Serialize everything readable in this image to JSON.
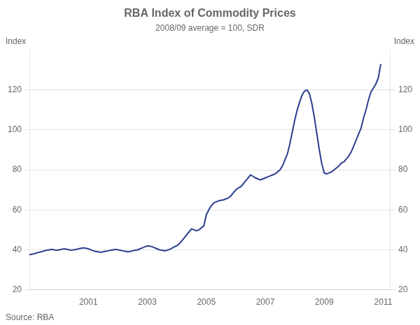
{
  "chart_data": {
    "type": "line",
    "title": "RBA Index of Commodity Prices",
    "subtitle": "2008/09 average = 100, SDR",
    "ylabel": "Index",
    "source": "Source: RBA",
    "color": "#2a3d8f",
    "x": [
      1999.0,
      1999.083,
      1999.167,
      1999.25,
      1999.333,
      1999.417,
      1999.5,
      1999.583,
      1999.667,
      1999.75,
      1999.833,
      1999.917,
      2000.0,
      2000.083,
      2000.167,
      2000.25,
      2000.333,
      2000.417,
      2000.5,
      2000.583,
      2000.667,
      2000.75,
      2000.833,
      2000.917,
      2001.0,
      2001.083,
      2001.167,
      2001.25,
      2001.333,
      2001.417,
      2001.5,
      2001.583,
      2001.667,
      2001.75,
      2001.833,
      2001.917,
      2002.0,
      2002.083,
      2002.167,
      2002.25,
      2002.333,
      2002.417,
      2002.5,
      2002.583,
      2002.667,
      2002.75,
      2002.833,
      2002.917,
      2003.0,
      2003.083,
      2003.167,
      2003.25,
      2003.333,
      2003.417,
      2003.5,
      2003.583,
      2003.667,
      2003.75,
      2003.833,
      2003.917,
      2004.0,
      2004.083,
      2004.167,
      2004.25,
      2004.333,
      2004.417,
      2004.5,
      2004.583,
      2004.667,
      2004.75,
      2004.833,
      2004.917,
      2005.0,
      2005.083,
      2005.167,
      2005.25,
      2005.333,
      2005.417,
      2005.5,
      2005.583,
      2005.667,
      2005.75,
      2005.833,
      2005.917,
      2006.0,
      2006.083,
      2006.167,
      2006.25,
      2006.333,
      2006.417,
      2006.5,
      2006.583,
      2006.667,
      2006.75,
      2006.833,
      2006.917,
      2007.0,
      2007.083,
      2007.167,
      2007.25,
      2007.333,
      2007.417,
      2007.5,
      2007.583,
      2007.667,
      2007.75,
      2007.833,
      2007.917,
      2008.0,
      2008.083,
      2008.167,
      2008.25,
      2008.333,
      2008.417,
      2008.5,
      2008.583,
      2008.667,
      2008.75,
      2008.833,
      2008.917,
      2009.0,
      2009.083,
      2009.167,
      2009.25,
      2009.333,
      2009.417,
      2009.5,
      2009.583,
      2009.667,
      2009.75,
      2009.833,
      2009.917,
      2010.0,
      2010.083,
      2010.167,
      2010.25,
      2010.333,
      2010.417,
      2010.5,
      2010.583,
      2010.667,
      2010.75,
      2010.833,
      2010.917
    ],
    "values": [
      37.5,
      37.8,
      38.0,
      38.5,
      38.8,
      39.0,
      39.5,
      39.8,
      40.0,
      40.2,
      40.0,
      39.8,
      40.0,
      40.2,
      40.5,
      40.3,
      40.1,
      39.8,
      40.0,
      40.2,
      40.5,
      40.8,
      41.0,
      40.8,
      40.5,
      40.0,
      39.5,
      39.2,
      39.0,
      38.8,
      39.0,
      39.3,
      39.5,
      39.8,
      40.0,
      40.2,
      40.0,
      39.8,
      39.5,
      39.3,
      39.0,
      39.2,
      39.5,
      39.8,
      40.0,
      40.5,
      41.0,
      41.5,
      42.0,
      41.8,
      41.5,
      41.0,
      40.5,
      40.0,
      39.8,
      39.5,
      39.8,
      40.2,
      40.8,
      41.5,
      42.0,
      43.0,
      44.5,
      46.0,
      47.5,
      49.0,
      50.5,
      50.0,
      49.5,
      50.0,
      51.0,
      52.0,
      57.5,
      60.0,
      62.0,
      63.5,
      64.0,
      64.5,
      64.8,
      65.0,
      65.5,
      66.0,
      67.0,
      68.5,
      70.0,
      71.0,
      71.5,
      73.0,
      74.5,
      76.0,
      77.5,
      76.8,
      76.0,
      75.5,
      75.0,
      75.5,
      76.0,
      76.5,
      77.0,
      77.5,
      78.0,
      79.0,
      80.0,
      82.0,
      85.0,
      88.0,
      93.0,
      99.0,
      105.0,
      110.0,
      114.0,
      117.5,
      119.5,
      120.0,
      118.0,
      113.0,
      106.0,
      98.0,
      90.0,
      83.0,
      78.5,
      78.0,
      78.5,
      79.0,
      80.0,
      81.0,
      82.0,
      83.5,
      84.0,
      85.5,
      87.0,
      89.0,
      92.0,
      95.0,
      98.0,
      101.0,
      106.0,
      110.0,
      115.0,
      119.0,
      121.0,
      123.0,
      126.0,
      133.0
    ],
    "xlim": [
      1999.0,
      2011.25
    ],
    "xticks": [
      2001,
      2003,
      2005,
      2007,
      2009,
      2011
    ],
    "ylim": [
      20,
      140
    ],
    "yticks": [
      20,
      40,
      60,
      80,
      100,
      120
    ],
    "y2lim": [
      20,
      140
    ],
    "y2ticks": [
      20,
      40,
      60,
      80,
      100,
      120
    ],
    "grid": "y"
  }
}
